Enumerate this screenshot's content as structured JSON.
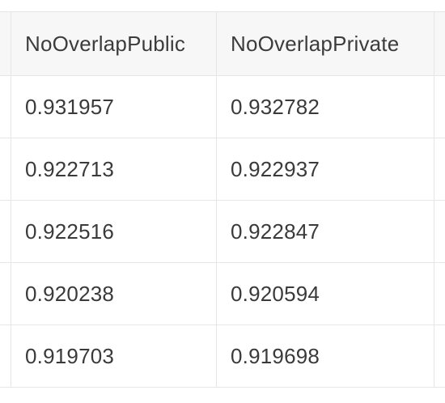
{
  "table": {
    "columns": [
      "NoOverlapPublic",
      "NoOverlapPrivate"
    ],
    "rows": [
      [
        "0.931957",
        "0.932782"
      ],
      [
        "0.922713",
        "0.922937"
      ],
      [
        "0.922516",
        "0.922847"
      ],
      [
        "0.920238",
        "0.920594"
      ],
      [
        "0.919703",
        "0.919698"
      ]
    ]
  }
}
